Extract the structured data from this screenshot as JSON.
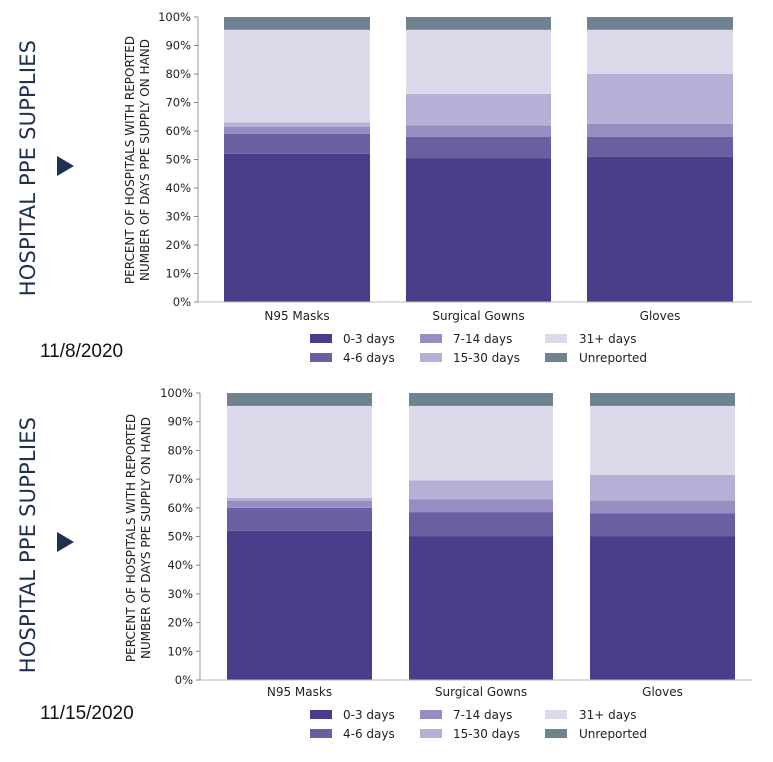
{
  "panels": [
    {
      "side_title": "HOSPITAL PPE SUPPLIES",
      "date": "11/8/2020",
      "chart_data": {
        "type": "bar",
        "stacked": true,
        "categories": [
          "N95 Masks",
          "Surgical Gowns",
          "Gloves"
        ],
        "ylabel": "PERCENT OF HOSPITALS WITH REPORTED NUMBER OF DAYS PPE SUPPLY ON HAND",
        "xlabel": "",
        "ylim": [
          0,
          100
        ],
        "yticks": [
          "0%",
          "10%",
          "20%",
          "30%",
          "40%",
          "50%",
          "60%",
          "70%",
          "80%",
          "90%",
          "100%"
        ],
        "legend_position": "bottom",
        "series": [
          {
            "name": "0-3 days",
            "color": "#4a3d8a",
            "values": [
              52,
              50.5,
              51
            ]
          },
          {
            "name": "4-6 days",
            "color": "#6b5fa1",
            "values": [
              7,
              7.5,
              7
            ]
          },
          {
            "name": "7-14 days",
            "color": "#978dc3",
            "values": [
              2.5,
              4,
              4.5
            ]
          },
          {
            "name": "15-30 days",
            "color": "#b5b0d6",
            "values": [
              1.5,
              11,
              17.5
            ]
          },
          {
            "name": "31+ days",
            "color": "#dcdaea",
            "values": [
              32.5,
              22.5,
              15.5
            ]
          },
          {
            "name": "Unreported",
            "color": "#6f8290",
            "values": [
              4.5,
              4.5,
              4.5
            ]
          }
        ]
      }
    },
    {
      "side_title": "HOSPITAL PPE SUPPLIES",
      "date": "11/15/2020",
      "chart_data": {
        "type": "bar",
        "stacked": true,
        "categories": [
          "N95 Masks",
          "Surgical Gowns",
          "Gloves"
        ],
        "ylabel": "PERCENT OF HOSPITALS WITH REPORTED NUMBER OF DAYS PPE SUPPLY ON HAND",
        "xlabel": "",
        "ylim": [
          0,
          100
        ],
        "yticks": [
          "0%",
          "10%",
          "20%",
          "30%",
          "40%",
          "50%",
          "60%",
          "70%",
          "80%",
          "90%",
          "100%"
        ],
        "legend_position": "bottom",
        "series": [
          {
            "name": "0-3 days",
            "color": "#4a3d8a",
            "values": [
              52,
              50,
              50
            ]
          },
          {
            "name": "4-6 days",
            "color": "#6b5fa1",
            "values": [
              8,
              8.5,
              8
            ]
          },
          {
            "name": "7-14 days",
            "color": "#978dc3",
            "values": [
              2.5,
              4.5,
              4.5
            ]
          },
          {
            "name": "15-30 days",
            "color": "#b5b0d6",
            "values": [
              1,
              6.5,
              9
            ]
          },
          {
            "name": "31+ days",
            "color": "#dcdaea",
            "values": [
              32,
              26,
              24
            ]
          },
          {
            "name": "Unreported",
            "color": "#6f8290",
            "values": [
              4.5,
              4.5,
              4.5
            ]
          }
        ]
      }
    }
  ]
}
